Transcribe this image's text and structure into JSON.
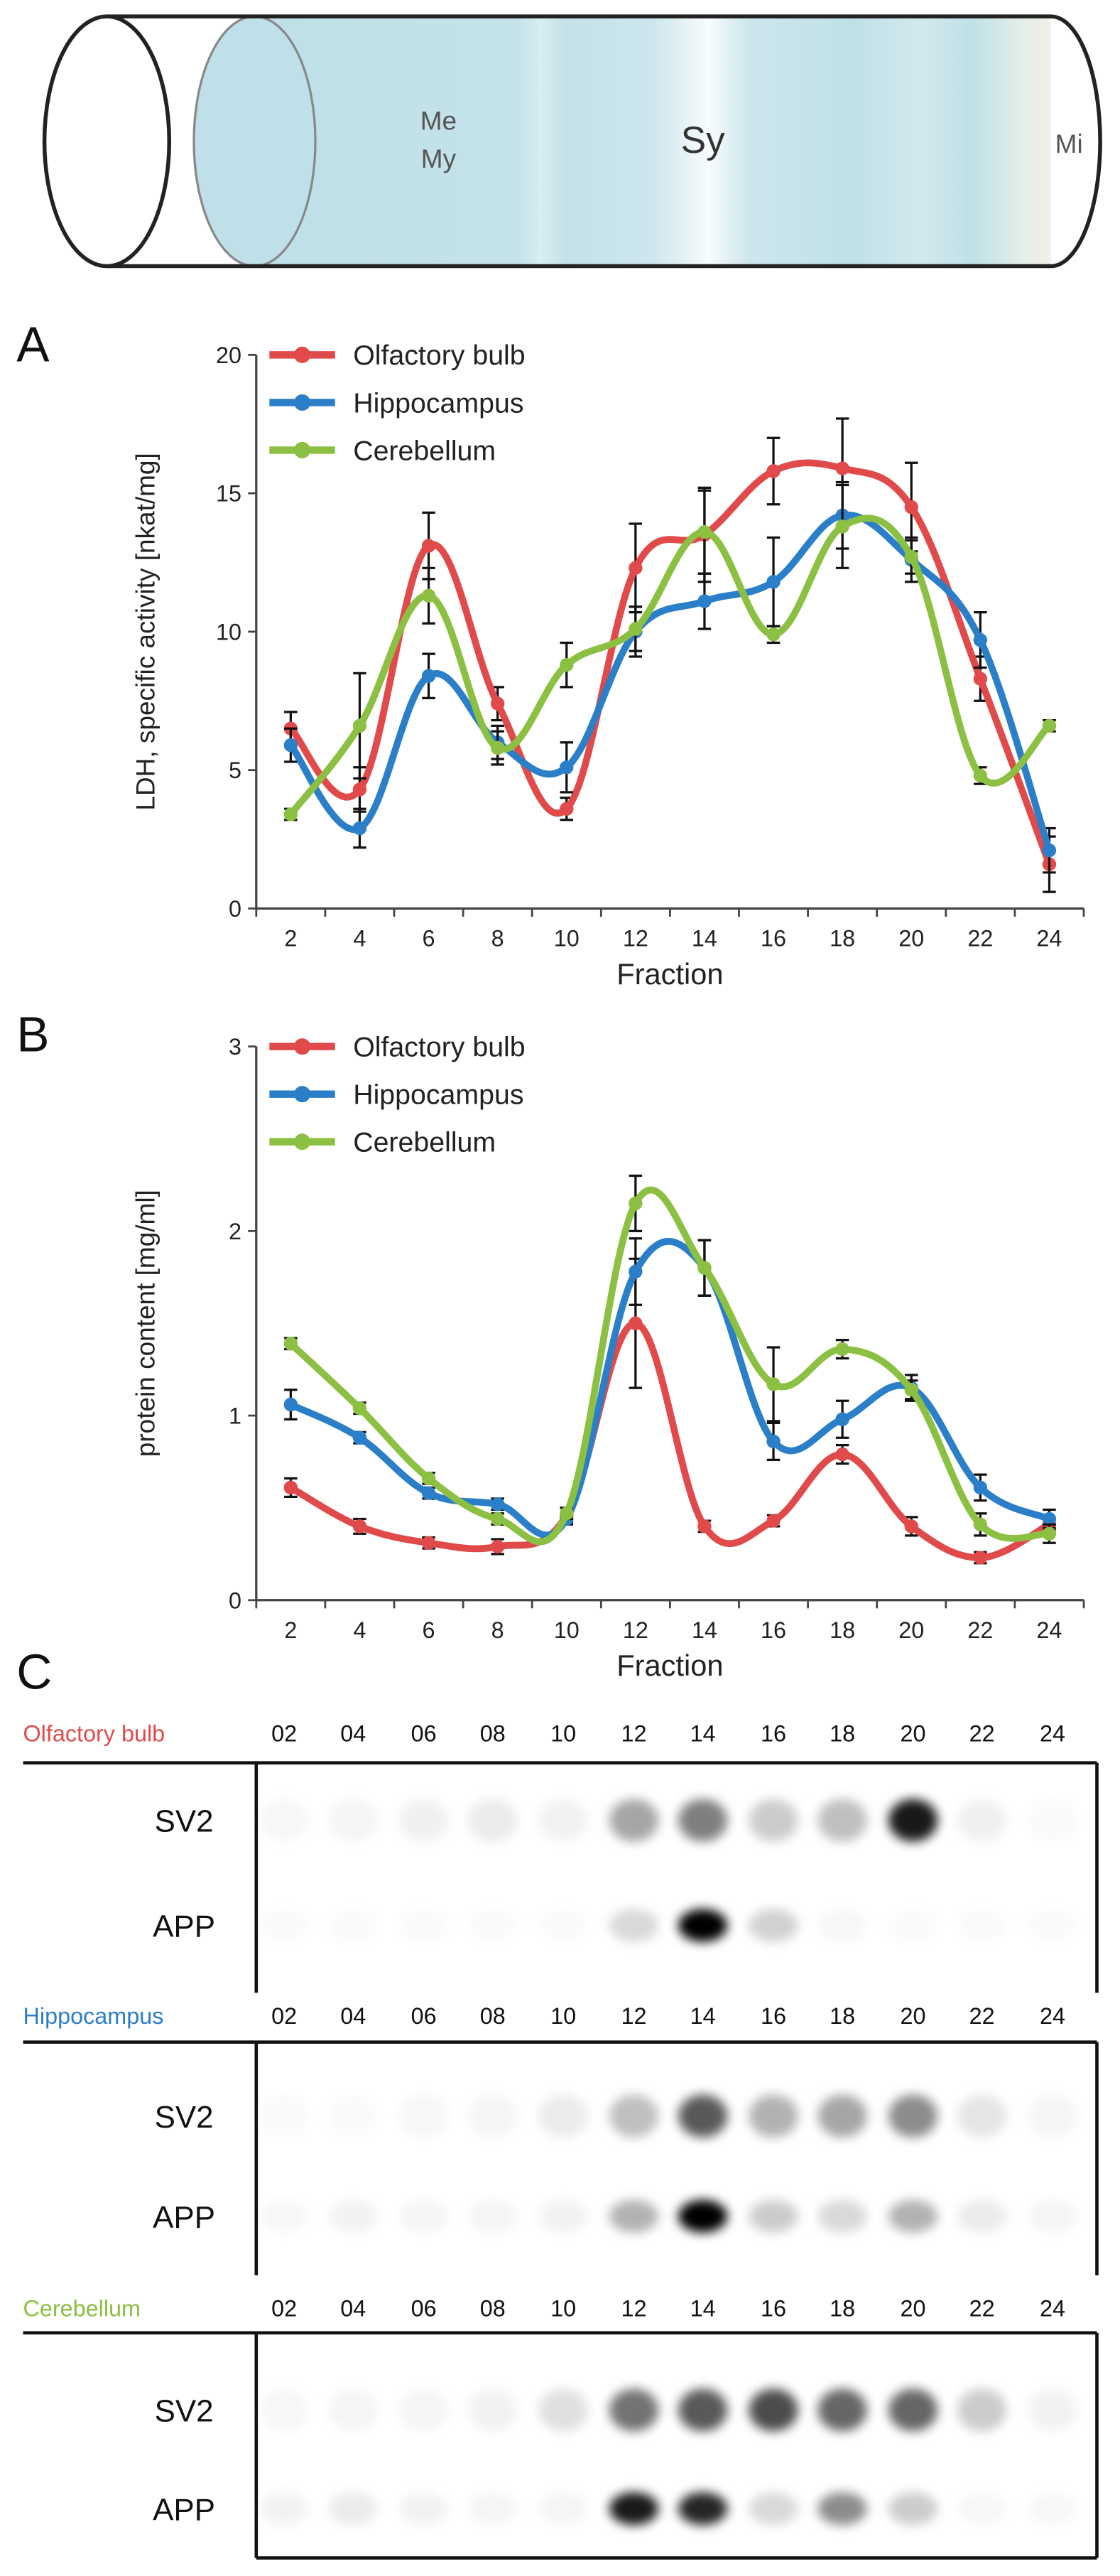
{
  "tube": {
    "labels": {
      "me": "Me",
      "my": "My",
      "sy": "Sy",
      "mi": "Mi"
    }
  },
  "colors": {
    "olfactory": "#e04a4a",
    "hippocampus": "#2a7fc8",
    "cerebellum": "#8cc043",
    "tube_fill": "#bfe0e8"
  },
  "chart_data": [
    {
      "type": "line",
      "panel": "A",
      "xlabel": "Fraction",
      "ylabel": "LDH, specific activity [nkat/mg]",
      "ylim": [
        0,
        20
      ],
      "yticks": [
        0,
        5,
        10,
        15,
        20
      ],
      "x": [
        2,
        4,
        6,
        8,
        10,
        12,
        14,
        16,
        18,
        20,
        22,
        24
      ],
      "legend_position": "top-left",
      "series": [
        {
          "name": "Olfactory bulb",
          "key": "olfactory",
          "values": [
            6.5,
            4.3,
            13.1,
            7.4,
            3.6,
            12.3,
            13.5,
            15.8,
            15.9,
            14.5,
            8.3,
            1.6
          ],
          "errors": [
            0.6,
            0.8,
            1.2,
            0.6,
            0.4,
            1.6,
            1.7,
            1.2,
            1.8,
            1.6,
            0.8,
            1.0
          ]
        },
        {
          "name": "Hippocampus",
          "key": "hippocampus",
          "values": [
            5.9,
            2.9,
            8.4,
            6.0,
            5.1,
            10.0,
            11.1,
            11.8,
            14.2,
            12.6,
            9.7,
            2.1
          ],
          "errors": [
            0.6,
            0.7,
            0.8,
            0.6,
            0.9,
            0.9,
            1.0,
            1.6,
            1.2,
            0.8,
            1.0,
            0.8
          ]
        },
        {
          "name": "Cerebellum",
          "key": "cerebellum",
          "values": [
            3.4,
            6.6,
            11.3,
            5.8,
            8.8,
            10.1,
            13.6,
            9.9,
            13.8,
            12.7,
            4.8,
            6.6
          ],
          "errors": [
            0.2,
            1.9,
            1.0,
            0.6,
            0.8,
            0.8,
            1.5,
            0.3,
            1.5,
            0.6,
            0.3,
            0.2
          ]
        }
      ]
    },
    {
      "type": "line",
      "panel": "B",
      "xlabel": "Fraction",
      "ylabel": "protein content [mg/ml]",
      "ylim": [
        0,
        3
      ],
      "yticks": [
        0,
        1,
        2,
        3
      ],
      "x": [
        2,
        4,
        6,
        8,
        10,
        12,
        14,
        16,
        18,
        20,
        22,
        24
      ],
      "legend_position": "top-left",
      "series": [
        {
          "name": "Olfactory bulb",
          "key": "olfactory",
          "values": [
            0.61,
            0.4,
            0.31,
            0.29,
            0.46,
            1.5,
            0.4,
            0.43,
            0.79,
            0.4,
            0.23,
            0.41
          ],
          "errors": [
            0.05,
            0.04,
            0.03,
            0.04,
            0.04,
            0.35,
            0.03,
            0.03,
            0.05,
            0.05,
            0.03,
            0.03
          ]
        },
        {
          "name": "Hippocampus",
          "key": "hippocampus",
          "values": [
            1.06,
            0.88,
            0.58,
            0.52,
            0.44,
            1.78,
            1.8,
            0.86,
            0.98,
            1.15,
            0.61,
            0.44
          ],
          "errors": [
            0.08,
            0.03,
            0.03,
            0.03,
            0.03,
            0.18,
            0.15,
            0.1,
            0.1,
            0.07,
            0.07,
            0.05
          ]
        },
        {
          "name": "Cerebellum",
          "key": "cerebellum",
          "values": [
            1.39,
            1.04,
            0.66,
            0.44,
            0.47,
            2.15,
            1.8,
            1.17,
            1.36,
            1.14,
            0.41,
            0.36
          ],
          "errors": [
            0.03,
            0.03,
            0.03,
            0.03,
            0.03,
            0.15,
            0.15,
            0.2,
            0.05,
            0.05,
            0.06,
            0.05
          ]
        }
      ]
    }
  ],
  "blots": {
    "fractions": [
      "02",
      "04",
      "06",
      "08",
      "10",
      "12",
      "14",
      "16",
      "18",
      "20",
      "22",
      "24"
    ],
    "rows": [
      "SV2",
      "APP"
    ],
    "tissues": [
      {
        "name": "Olfactory bulb",
        "key": "olfactory",
        "bands": {
          "SV2": [
            0.03,
            0.04,
            0.06,
            0.08,
            0.05,
            0.35,
            0.5,
            0.2,
            0.25,
            0.9,
            0.06,
            0.02
          ],
          "APP": [
            0.02,
            0.02,
            0.02,
            0.02,
            0.02,
            0.15,
            1.0,
            0.18,
            0.03,
            0.02,
            0.02,
            0.02
          ]
        }
      },
      {
        "name": "Hippocampus",
        "key": "hippocampus",
        "bands": {
          "SV2": [
            0.02,
            0.02,
            0.03,
            0.04,
            0.08,
            0.25,
            0.65,
            0.3,
            0.35,
            0.45,
            0.1,
            0.04
          ],
          "APP": [
            0.03,
            0.05,
            0.04,
            0.04,
            0.05,
            0.3,
            1.0,
            0.2,
            0.15,
            0.3,
            0.08,
            0.04
          ]
        }
      },
      {
        "name": "Cerebellum",
        "key": "cerebellum",
        "bands": {
          "SV2": [
            0.03,
            0.04,
            0.04,
            0.05,
            0.12,
            0.55,
            0.65,
            0.7,
            0.6,
            0.6,
            0.2,
            0.05
          ],
          "APP": [
            0.05,
            0.08,
            0.05,
            0.04,
            0.04,
            0.9,
            0.85,
            0.15,
            0.45,
            0.2,
            0.03,
            0.03
          ]
        }
      }
    ]
  }
}
